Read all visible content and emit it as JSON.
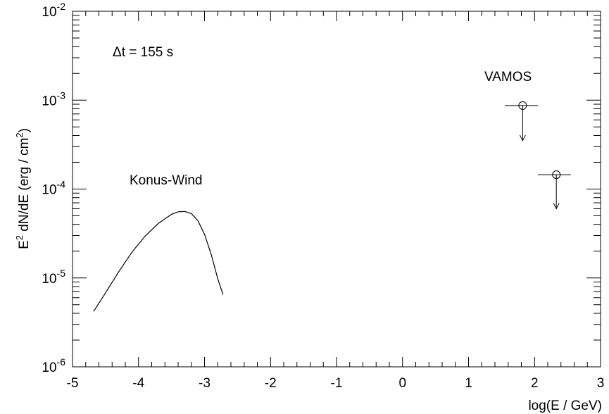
{
  "chart_data": {
    "type": "line",
    "title": "",
    "xlabel": "log(E / GeV)",
    "ylabel_parts": {
      "base": "E",
      "sup": "2",
      "mid": " dN/dE (erg / cm",
      "sup2": "2",
      "end": ")"
    },
    "xlim": [
      -5,
      3
    ],
    "ylim": [
      1e-06,
      0.01
    ],
    "yscale": "log",
    "x_ticks": [
      "-5",
      "-4",
      "-3",
      "-2",
      "-1",
      "0",
      "1",
      "2",
      "3"
    ],
    "y_ticks": [
      {
        "base": "10",
        "exp": "-6"
      },
      {
        "base": "10",
        "exp": "-5"
      },
      {
        "base": "10",
        "exp": "-4"
      },
      {
        "base": "10",
        "exp": "-3"
      },
      {
        "base": "10",
        "exp": "-2"
      }
    ],
    "grid": false,
    "annotations": {
      "delta_t": "Δt = 155 s",
      "konus": "Konus-Wind",
      "vamos": "VAMOS"
    },
    "series": [
      {
        "name": "Konus-Wind",
        "kind": "curve",
        "color": "#000000",
        "x": [
          -4.68,
          -4.5,
          -4.3,
          -4.1,
          -3.9,
          -3.7,
          -3.5,
          -3.4,
          -3.3,
          -3.2,
          -3.1,
          -3.0,
          -2.9,
          -2.8,
          -2.72
        ],
        "y": [
          4.2e-06,
          6.8e-06,
          1.17e-05,
          1.95e-05,
          2.95e-05,
          4.1e-05,
          5.2e-05,
          5.55e-05,
          5.6e-05,
          5.3e-05,
          4.4e-05,
          3.1e-05,
          1.85e-05,
          9.8e-06,
          6.5e-06
        ]
      },
      {
        "name": "VAMOS",
        "kind": "upper_limits",
        "color": "#000000",
        "points": [
          {
            "x": 1.82,
            "xerr": [
              1.55,
              2.05
            ],
            "y": 0.00087,
            "arrow_to": 0.00035
          },
          {
            "x": 2.33,
            "xerr": [
              2.05,
              2.55
            ],
            "y": 0.000145,
            "arrow_to": 6e-05
          }
        ]
      }
    ]
  }
}
